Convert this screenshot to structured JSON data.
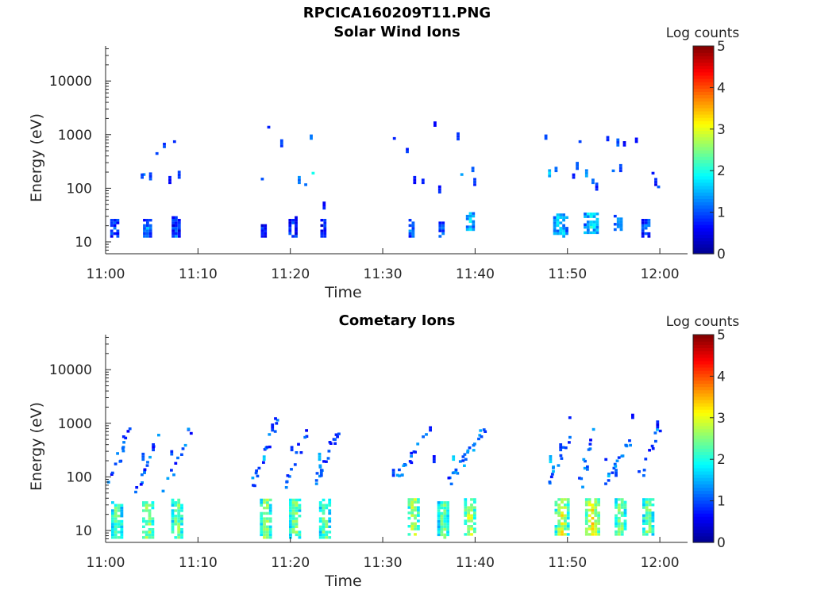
{
  "figure_title": "RPCICA160209T11.PNG",
  "colors": {
    "colormap": [
      "#00008f",
      "#0000ff",
      "#0080ff",
      "#00ffff",
      "#80ff80",
      "#ffff00",
      "#ff8000",
      "#ff0000",
      "#800000"
    ]
  },
  "chart_data": [
    {
      "type": "heatmap",
      "title": "Solar Wind Ions",
      "xlabel": "Time",
      "ylabel": "Energy (eV)",
      "x_ticks": [
        "11:00",
        "11:10",
        "11:20",
        "11:30",
        "11:40",
        "11:50",
        "12:00"
      ],
      "x_range_minutes": [
        0,
        63
      ],
      "y_ticks": [
        10,
        100,
        1000,
        10000
      ],
      "y_scale": "log",
      "y_range": [
        6,
        45000
      ],
      "colorbar": {
        "label": "Log counts",
        "ticks": [
          0,
          1,
          2,
          3,
          4,
          5
        ],
        "range": [
          0,
          5
        ]
      },
      "clusters": [
        {
          "t": 1.0,
          "e_lo": 12,
          "e_hi": 26,
          "level": 0.8,
          "w": 1.0
        },
        {
          "t": 4.5,
          "e_lo": 12,
          "e_hi": 26,
          "level": 1.1,
          "w": 0.9
        },
        {
          "t": 7.6,
          "e_lo": 12,
          "e_hi": 30,
          "level": 0.9,
          "w": 0.9
        },
        {
          "t": 17.2,
          "e_lo": 12,
          "e_hi": 20,
          "level": 0.7,
          "w": 0.8
        },
        {
          "t": 20.3,
          "e_lo": 12,
          "e_hi": 30,
          "level": 0.8,
          "w": 1.0
        },
        {
          "t": 23.5,
          "e_lo": 12,
          "e_hi": 26,
          "level": 0.7,
          "w": 0.5
        },
        {
          "t": 33.2,
          "e_lo": 12,
          "e_hi": 24,
          "level": 1.1,
          "w": 0.8
        },
        {
          "t": 36.4,
          "e_lo": 12,
          "e_hi": 22,
          "level": 1.0,
          "w": 0.7
        },
        {
          "t": 39.5,
          "e_lo": 16,
          "e_hi": 32,
          "level": 1.5,
          "w": 1.0
        },
        {
          "t": 49.2,
          "e_lo": 12,
          "e_hi": 32,
          "level": 1.5,
          "w": 1.5
        },
        {
          "t": 52.5,
          "e_lo": 14,
          "e_hi": 32,
          "level": 1.6,
          "w": 1.5
        },
        {
          "t": 55.5,
          "e_lo": 16,
          "e_hi": 30,
          "level": 1.3,
          "w": 1.0
        },
        {
          "t": 58.5,
          "e_lo": 12,
          "e_hi": 26,
          "level": 1.0,
          "w": 1.0
        }
      ],
      "sparse": [
        {
          "t": 4.0,
          "e": 170,
          "level": 1.2
        },
        {
          "t": 3.8,
          "e": 150,
          "level": 1.0
        },
        {
          "t": 4.7,
          "e": 140,
          "level": 0.9
        },
        {
          "t": 5.4,
          "e": 420,
          "level": 0.9
        },
        {
          "t": 6.2,
          "e": 560,
          "level": 1.0
        },
        {
          "t": 7.3,
          "e": 700,
          "level": 0.9
        },
        {
          "t": 6.8,
          "e": 120,
          "level": 0.7
        },
        {
          "t": 7.8,
          "e": 150,
          "level": 0.8
        },
        {
          "t": 16.8,
          "e": 140,
          "level": 0.9
        },
        {
          "t": 17.5,
          "e": 1300,
          "level": 0.7
        },
        {
          "t": 18.9,
          "e": 580,
          "level": 1.0
        },
        {
          "t": 20.8,
          "e": 120,
          "level": 1.2
        },
        {
          "t": 21.5,
          "e": 110,
          "level": 1.0
        },
        {
          "t": 22.1,
          "e": 800,
          "level": 1.1
        },
        {
          "t": 22.3,
          "e": 180,
          "level": 1.8
        },
        {
          "t": 23.5,
          "e": 40,
          "level": 0.7
        },
        {
          "t": 31.1,
          "e": 800,
          "level": 0.9
        },
        {
          "t": 32.5,
          "e": 450,
          "level": 0.8
        },
        {
          "t": 33.3,
          "e": 120,
          "level": 0.7
        },
        {
          "t": 34.2,
          "e": 120,
          "level": 0.8
        },
        {
          "t": 35.5,
          "e": 1400,
          "level": 0.7
        },
        {
          "t": 36.0,
          "e": 80,
          "level": 0.8
        },
        {
          "t": 38.0,
          "e": 780,
          "level": 0.8
        },
        {
          "t": 38.4,
          "e": 170,
          "level": 1.5
        },
        {
          "t": 39.6,
          "e": 200,
          "level": 0.9
        },
        {
          "t": 39.8,
          "e": 110,
          "level": 0.9
        },
        {
          "t": 47.5,
          "e": 800,
          "level": 0.8
        },
        {
          "t": 47.9,
          "e": 160,
          "level": 1.6
        },
        {
          "t": 48.6,
          "e": 200,
          "level": 1.0
        },
        {
          "t": 50.5,
          "e": 150,
          "level": 0.8
        },
        {
          "t": 50.9,
          "e": 220,
          "level": 1.0
        },
        {
          "t": 51.2,
          "e": 700,
          "level": 1.0
        },
        {
          "t": 51.9,
          "e": 160,
          "level": 1.3
        },
        {
          "t": 52.6,
          "e": 120,
          "level": 1.0
        },
        {
          "t": 53.0,
          "e": 90,
          "level": 0.8
        },
        {
          "t": 54.2,
          "e": 750,
          "level": 0.8
        },
        {
          "t": 54.8,
          "e": 200,
          "level": 1.1
        },
        {
          "t": 55.3,
          "e": 600,
          "level": 1.0
        },
        {
          "t": 55.6,
          "e": 200,
          "level": 1.0
        },
        {
          "t": 56.0,
          "e": 600,
          "level": 0.7
        },
        {
          "t": 57.3,
          "e": 700,
          "level": 0.7
        },
        {
          "t": 59.1,
          "e": 180,
          "level": 0.7
        },
        {
          "t": 59.4,
          "e": 110,
          "level": 0.7
        },
        {
          "t": 59.7,
          "e": 100,
          "level": 1.0
        }
      ]
    },
    {
      "type": "heatmap",
      "title": "Cometary Ions",
      "xlabel": "Time",
      "ylabel": "Energy (eV)",
      "x_ticks": [
        "11:00",
        "11:10",
        "11:20",
        "11:30",
        "11:40",
        "11:50",
        "12:00"
      ],
      "x_range_minutes": [
        0,
        63
      ],
      "y_ticks": [
        10,
        100,
        1000,
        10000
      ],
      "y_scale": "log",
      "y_range": [
        6,
        45000
      ],
      "colorbar": {
        "label": "Log counts",
        "ticks": [
          0,
          1,
          2,
          3,
          4,
          5
        ],
        "range": [
          0,
          5
        ]
      },
      "clusters": [
        {
          "t": 1.3,
          "e_lo": 7,
          "e_hi": 34,
          "level": 2.2,
          "w": 1.4
        },
        {
          "t": 4.6,
          "e_lo": 7,
          "e_hi": 34,
          "level": 2.4,
          "w": 1.3
        },
        {
          "t": 7.8,
          "e_lo": 7,
          "e_hi": 38,
          "level": 2.3,
          "w": 1.4
        },
        {
          "t": 17.3,
          "e_lo": 7,
          "e_hi": 38,
          "level": 2.4,
          "w": 1.2
        },
        {
          "t": 20.5,
          "e_lo": 7,
          "e_hi": 38,
          "level": 2.3,
          "w": 1.3
        },
        {
          "t": 23.7,
          "e_lo": 7,
          "e_hi": 38,
          "level": 2.2,
          "w": 1.2
        },
        {
          "t": 33.3,
          "e_lo": 8,
          "e_hi": 36,
          "level": 2.5,
          "w": 1.2
        },
        {
          "t": 36.5,
          "e_lo": 7,
          "e_hi": 34,
          "level": 2.2,
          "w": 1.2
        },
        {
          "t": 39.5,
          "e_lo": 8,
          "e_hi": 38,
          "level": 2.6,
          "w": 1.4
        },
        {
          "t": 49.5,
          "e_lo": 8,
          "e_hi": 38,
          "level": 2.6,
          "w": 1.8
        },
        {
          "t": 52.7,
          "e_lo": 8,
          "e_hi": 38,
          "level": 2.8,
          "w": 1.6
        },
        {
          "t": 55.8,
          "e_lo": 8,
          "e_hi": 36,
          "level": 2.3,
          "w": 1.4
        },
        {
          "t": 58.8,
          "e_lo": 8,
          "e_hi": 36,
          "level": 2.3,
          "w": 1.4
        }
      ],
      "streaks": [
        {
          "t0": 0.0,
          "e0": 45,
          "t1": 2.6,
          "e1": 1100,
          "level": 1.0
        },
        {
          "t0": 3.3,
          "e0": 50,
          "t1": 5.6,
          "e1": 600,
          "level": 1.0
        },
        {
          "t0": 6.1,
          "e0": 45,
          "t1": 9.0,
          "e1": 650,
          "level": 1.0
        },
        {
          "t0": 15.8,
          "e0": 75,
          "t1": 18.4,
          "e1": 1100,
          "level": 1.1
        },
        {
          "t0": 19.3,
          "e0": 70,
          "t1": 21.5,
          "e1": 600,
          "level": 1.0
        },
        {
          "t0": 22.5,
          "e0": 70,
          "t1": 24.9,
          "e1": 650,
          "level": 1.0
        },
        {
          "t0": 31.5,
          "e0": 90,
          "t1": 34.4,
          "e1": 550,
          "level": 1.0
        },
        {
          "t0": 37.3,
          "e0": 80,
          "t1": 40.8,
          "e1": 800,
          "level": 1.1
        },
        {
          "t0": 47.8,
          "e0": 70,
          "t1": 50.2,
          "e1": 600,
          "level": 1.1
        },
        {
          "t0": 51.3,
          "e0": 75,
          "t1": 52.8,
          "e1": 600,
          "level": 1.0
        },
        {
          "t0": 54.1,
          "e0": 70,
          "t1": 56.6,
          "e1": 450,
          "level": 1.2
        },
        {
          "t0": 57.3,
          "e0": 70,
          "t1": 59.7,
          "e1": 750,
          "level": 1.1
        }
      ],
      "sparse": [
        {
          "t": 2.0,
          "e": 500,
          "level": 0.8
        },
        {
          "t": 5.0,
          "e": 300,
          "level": 0.8
        },
        {
          "t": 3.9,
          "e": 200,
          "level": 1.0
        },
        {
          "t": 7.0,
          "e": 250,
          "level": 0.9
        },
        {
          "t": 17.0,
          "e": 200,
          "level": 1.5
        },
        {
          "t": 17.9,
          "e": 700,
          "level": 0.8
        },
        {
          "t": 20.0,
          "e": 300,
          "level": 0.9
        },
        {
          "t": 23.0,
          "e": 200,
          "level": 1.6
        },
        {
          "t": 23.2,
          "e": 100,
          "level": 1.0
        },
        {
          "t": 31.0,
          "e": 100,
          "level": 1.0
        },
        {
          "t": 35.0,
          "e": 700,
          "level": 0.7
        },
        {
          "t": 35.4,
          "e": 180,
          "level": 0.8
        },
        {
          "t": 37.5,
          "e": 200,
          "level": 1.6
        },
        {
          "t": 37.0,
          "e": 90,
          "level": 0.8
        },
        {
          "t": 48.0,
          "e": 180,
          "level": 1.6
        },
        {
          "t": 49.1,
          "e": 300,
          "level": 1.0
        },
        {
          "t": 50.1,
          "e": 1200,
          "level": 0.7
        },
        {
          "t": 51.6,
          "e": 200,
          "level": 1.2
        },
        {
          "t": 52.0,
          "e": 130,
          "level": 1.0
        },
        {
          "t": 54.0,
          "e": 200,
          "level": 0.9
        },
        {
          "t": 55.1,
          "e": 100,
          "level": 1.0
        },
        {
          "t": 56.9,
          "e": 1200,
          "level": 0.7
        },
        {
          "t": 58.1,
          "e": 100,
          "level": 1.2
        },
        {
          "t": 59.6,
          "e": 800,
          "level": 0.7
        }
      ]
    }
  ]
}
